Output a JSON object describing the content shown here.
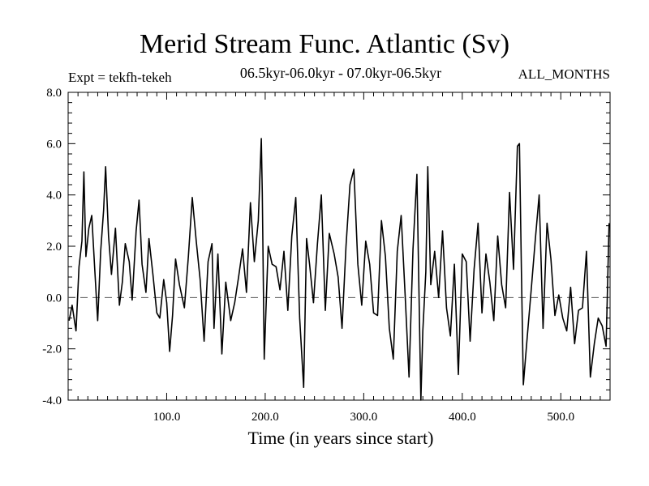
{
  "chart_data": {
    "type": "line",
    "title": "Merid Stream Func. Atlantic (Sv)",
    "subtitle": "06.5kyr-06.0kyr - 07.0kyr-06.5kyr",
    "annotation_left": "Expt = tekfh-tekeh",
    "annotation_right": "ALL_MONTHS",
    "xlabel": "Time (in years since start)",
    "ylabel": "",
    "xlim": [
      0,
      550
    ],
    "ylim": [
      -4.0,
      8.0
    ],
    "xticks": [
      100,
      200,
      300,
      400,
      500
    ],
    "xtick_labels": [
      "100.0",
      "200.0",
      "300.0",
      "400.0",
      "500.0"
    ],
    "yticks": [
      -4,
      -2,
      0,
      2,
      4,
      6,
      8
    ],
    "ytick_labels": [
      "-4.0",
      "-2.0",
      "0.0",
      "2.0",
      "4.0",
      "6.0",
      "8.0"
    ],
    "zero_line": "dashed",
    "grid": false,
    "series": [
      {
        "x": [
          1,
          4,
          8,
          11,
          14,
          16,
          18,
          21,
          24,
          27,
          30,
          33,
          36,
          38,
          41,
          44,
          48,
          52,
          55,
          58,
          62,
          65,
          69,
          72,
          75,
          79,
          82,
          86,
          90,
          93,
          97,
          100,
          103,
          106,
          109,
          113,
          118,
          122,
          126,
          130,
          134,
          138,
          142,
          146,
          148,
          152,
          156,
          160,
          165,
          169,
          173,
          177,
          181,
          185,
          189,
          193,
          196,
          197,
          199,
          203,
          207,
          211,
          215,
          219,
          223,
          227,
          231,
          235,
          239,
          242,
          245,
          249,
          253,
          257,
          261,
          265,
          270,
          274,
          278,
          282,
          286,
          290,
          294,
          298,
          302,
          306,
          310,
          314,
          318,
          322,
          326,
          330,
          334,
          338,
          342,
          346,
          350,
          354,
          358,
          360,
          363,
          365,
          368,
          372,
          376,
          380,
          384,
          388,
          392,
          396,
          400,
          404,
          408,
          412,
          416,
          420,
          424,
          428,
          432,
          436,
          440,
          444,
          448,
          452,
          456,
          458,
          460,
          462,
          466,
          470,
          474,
          478,
          482,
          486,
          490,
          494,
          498,
          502,
          506,
          510,
          514,
          518,
          522,
          526,
          530,
          534,
          538,
          542,
          546,
          549
        ],
        "y": [
          -0.9,
          -0.3,
          -1.3,
          1.2,
          2.2,
          4.9,
          1.6,
          2.7,
          3.2,
          1.1,
          -0.9,
          1.8,
          3.4,
          5.1,
          2.4,
          0.9,
          2.7,
          -0.3,
          0.6,
          2.1,
          1.4,
          -0.1,
          2.6,
          3.8,
          1.3,
          0.2,
          2.3,
          0.9,
          -0.6,
          -0.8,
          0.7,
          -0.2,
          -2.1,
          -0.7,
          1.5,
          0.5,
          -0.4,
          1.6,
          3.9,
          2.2,
          0.7,
          -1.7,
          1.4,
          2.1,
          -1.2,
          1.7,
          -2.2,
          0.6,
          -0.9,
          -0.2,
          0.8,
          1.9,
          0.2,
          3.7,
          1.4,
          3.0,
          6.2,
          4.1,
          -2.4,
          2.0,
          1.3,
          1.2,
          0.3,
          1.8,
          -0.5,
          2.4,
          3.9,
          -0.8,
          -3.5,
          2.3,
          1.3,
          -0.2,
          2.1,
          4.0,
          -0.5,
          2.5,
          1.7,
          0.8,
          -1.2,
          2.0,
          4.4,
          5.0,
          1.3,
          -0.3,
          2.2,
          1.3,
          -0.6,
          -0.7,
          3.0,
          1.6,
          -1.2,
          -2.4,
          1.8,
          3.2,
          0.1,
          -3.1,
          1.9,
          4.8,
          -4.0,
          -1.3,
          1.0,
          5.1,
          0.5,
          1.8,
          0.0,
          2.6,
          -0.4,
          -1.5,
          1.3,
          -3.0,
          1.7,
          1.4,
          -1.7,
          1.1,
          2.9,
          -0.6,
          1.7,
          0.6,
          -0.9,
          2.4,
          0.5,
          -0.4,
          4.1,
          1.1,
          5.9,
          6.0,
          1.1,
          -3.4,
          -1.5,
          0.3,
          2.2,
          4.0,
          -1.2,
          2.9,
          1.5,
          -0.7,
          0.1,
          -0.8,
          -1.3,
          0.4,
          -1.8,
          -0.5,
          -0.4,
          1.8,
          -3.1,
          -1.8,
          -0.8,
          -1.1,
          -1.9,
          2.9
        ]
      }
    ]
  }
}
